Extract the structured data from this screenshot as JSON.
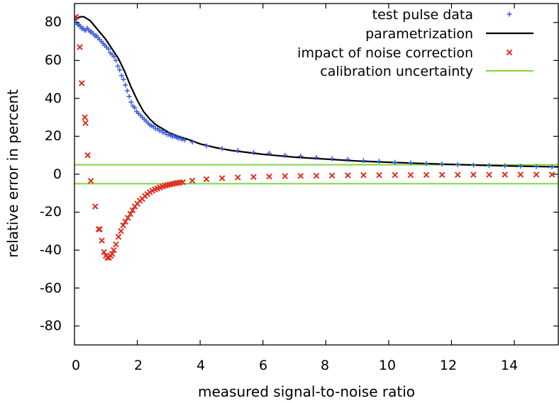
{
  "chart_data": {
    "type": "scatter",
    "title": "",
    "xlabel": "measured signal-to-noise ratio",
    "ylabel": "relative error in percent",
    "xlim": [
      0,
      15.4
    ],
    "ylim": [
      -90,
      90
    ],
    "xticks": [
      0,
      2,
      4,
      6,
      8,
      10,
      12,
      14
    ],
    "yticks": [
      80,
      60,
      40,
      20,
      0,
      -20,
      -40,
      -60,
      -80
    ],
    "grid": false,
    "legend_position": "top-right",
    "series": [
      {
        "name": "test pulse data",
        "kind": "points",
        "marker": "plus",
        "color": "#3b5bdb",
        "x": [
          0.03,
          0.07,
          0.1,
          0.14,
          0.18,
          0.22,
          0.27,
          0.31,
          0.36,
          0.41,
          0.46,
          0.5,
          0.55,
          0.6,
          0.65,
          0.7,
          0.75,
          0.8,
          0.86,
          0.91,
          0.96,
          1.02,
          1.08,
          1.14,
          1.2,
          1.26,
          1.32,
          1.38,
          1.44,
          1.5,
          1.56,
          1.62,
          1.68,
          1.74,
          1.8,
          1.86,
          1.92,
          1.98,
          2.04,
          2.1,
          2.16,
          2.22,
          2.28,
          2.34,
          2.4,
          2.46,
          2.52,
          2.58,
          2.64,
          2.7,
          2.76,
          2.82,
          2.88,
          2.94,
          3.0,
          3.06,
          3.12,
          3.18,
          3.24,
          3.3,
          3.36,
          3.42,
          3.5,
          3.75,
          4.2,
          4.7,
          5.2,
          5.7,
          6.2,
          6.7,
          7.2,
          7.7,
          8.2,
          8.7,
          9.2,
          9.7,
          10.2,
          10.7,
          11.2,
          11.7,
          12.2,
          12.7,
          13.2,
          13.7,
          14.2,
          14.7,
          15.2
        ],
        "y": [
          82,
          80,
          79,
          79,
          78,
          77,
          77,
          76,
          76,
          77,
          76,
          75,
          75,
          74,
          73,
          73,
          72,
          71,
          70,
          69,
          68,
          67,
          66,
          64,
          63,
          62,
          60,
          57,
          55,
          52,
          50,
          47,
          44,
          41,
          38,
          36,
          35,
          33,
          32,
          31,
          30,
          29,
          28,
          27,
          26,
          25.5,
          25,
          24,
          24,
          23,
          23,
          22,
          22,
          21,
          21,
          20.5,
          20,
          20,
          19.5,
          19,
          19,
          18.5,
          18,
          17,
          15,
          13.5,
          12.5,
          11.5,
          11,
          10,
          9.5,
          8.8,
          8.2,
          7.8,
          7.2,
          6.8,
          6.3,
          6,
          5.6,
          5.3,
          5,
          4.8,
          4.6,
          4.4,
          4.2,
          4,
          3.8
        ]
      },
      {
        "name": "parametrization",
        "kind": "line",
        "color": "#000000",
        "x": [
          0,
          0.1,
          0.2,
          0.3,
          0.4,
          0.5,
          0.6,
          0.7,
          0.8,
          0.9,
          1.0,
          1.2,
          1.4,
          1.6,
          1.8,
          2.0,
          2.2,
          2.4,
          2.6,
          2.8,
          3.0,
          3.3,
          3.6,
          4.0,
          4.5,
          5.0,
          6.0,
          7.0,
          8.0,
          9.0,
          10.0,
          11.0,
          12.0,
          13.0,
          14.0,
          15.0,
          15.4
        ],
        "y": [
          81,
          82.5,
          83,
          83,
          82,
          81,
          79,
          77,
          75,
          73,
          71,
          66,
          61,
          54,
          46,
          39,
          33,
          29,
          26,
          24,
          22,
          20,
          18.5,
          16,
          14,
          12.5,
          10.5,
          9,
          8,
          7,
          6.3,
          5.7,
          5.2,
          4.7,
          4.3,
          4,
          3.9
        ]
      },
      {
        "name": "impact of noise correction",
        "kind": "points",
        "marker": "cross",
        "color": "#e03020",
        "x": [
          0.05,
          0.17,
          0.23,
          0.33,
          0.35,
          0.42,
          0.52,
          0.66,
          0.77,
          0.8,
          0.87,
          0.94,
          1.0,
          1.05,
          1.1,
          1.15,
          1.2,
          1.25,
          1.32,
          1.4,
          1.48,
          1.55,
          1.62,
          1.7,
          1.78,
          1.85,
          1.92,
          2.0,
          2.08,
          2.16,
          2.24,
          2.32,
          2.4,
          2.48,
          2.56,
          2.64,
          2.72,
          2.8,
          2.88,
          2.96,
          3.04,
          3.12,
          3.2,
          3.28,
          3.36,
          3.45,
          3.75,
          4.2,
          4.7,
          5.2,
          5.7,
          6.2,
          6.7,
          7.2,
          7.7,
          8.2,
          8.7,
          9.2,
          9.7,
          10.2,
          10.7,
          11.2,
          11.7,
          12.2,
          12.7,
          13.2,
          13.7,
          14.2,
          14.7,
          15.2
        ],
        "y": [
          83,
          67,
          48,
          30,
          27,
          10,
          -3.5,
          -17,
          -29,
          -29,
          -35,
          -41,
          -43,
          -44,
          -44,
          -43,
          -42,
          -40,
          -37,
          -33,
          -30,
          -27,
          -25,
          -23,
          -21,
          -19,
          -17,
          -15.5,
          -14,
          -13,
          -11.5,
          -10.5,
          -9.5,
          -8.7,
          -8,
          -7.5,
          -7,
          -6.5,
          -6,
          -5.7,
          -5.4,
          -5.1,
          -4.8,
          -4.6,
          -4.4,
          -4.2,
          -3.4,
          -2.6,
          -2.1,
          -1.7,
          -1.4,
          -1.2,
          -1.0,
          -0.9,
          -0.8,
          -0.7,
          -0.6,
          -0.5,
          -0.5,
          -0.4,
          -0.4,
          -0.35,
          -0.3,
          -0.3,
          -0.25,
          -0.25,
          -0.2,
          -0.2,
          -0.2,
          -0.2
        ]
      },
      {
        "name": "calibration uncertainty",
        "kind": "hlines",
        "color": "#7cd83c",
        "y": [
          5,
          -5
        ]
      }
    ]
  }
}
